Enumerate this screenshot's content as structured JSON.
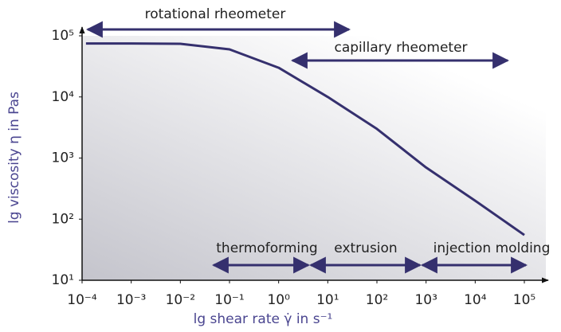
{
  "chart_data": {
    "type": "line",
    "x_label": "lg shear rate γ̇ in s⁻¹",
    "y_label": "lg viscosity η in Pas",
    "log_x": true,
    "log_y": true,
    "xlim": [
      0.0001,
      100000
    ],
    "ylim": [
      10,
      100000
    ],
    "xticks": [
      {
        "value": 0.0001,
        "label": "10⁻⁴"
      },
      {
        "value": 0.001,
        "label": "10⁻³"
      },
      {
        "value": 0.01,
        "label": "10⁻²"
      },
      {
        "value": 0.1,
        "label": "10⁻¹"
      },
      {
        "value": 1,
        "label": "10⁰"
      },
      {
        "value": 10,
        "label": "10¹"
      },
      {
        "value": 100,
        "label": "10²"
      },
      {
        "value": 1000,
        "label": "10³"
      },
      {
        "value": 10000,
        "label": "10⁴"
      },
      {
        "value": 100000,
        "label": "10⁵"
      }
    ],
    "yticks": [
      {
        "value": 10,
        "label": "10¹"
      },
      {
        "value": 100,
        "label": "10²"
      },
      {
        "value": 1000,
        "label": "10³"
      },
      {
        "value": 10000,
        "label": "10⁴"
      },
      {
        "value": 100000,
        "label": "10⁵"
      }
    ],
    "series": [
      {
        "name": "viscosity",
        "color": "#35306e",
        "x": [
          0.00012,
          0.001,
          0.01,
          0.1,
          1,
          10,
          100,
          1000,
          10000,
          100000
        ],
        "values": [
          75000,
          75000,
          74000,
          60000,
          30000,
          10000,
          3000,
          700,
          200,
          55
        ]
      }
    ],
    "annotations": [
      "rotational rheometer",
      "capillary rheometer",
      "thermoforming",
      "extrusion",
      "injection molding"
    ]
  }
}
